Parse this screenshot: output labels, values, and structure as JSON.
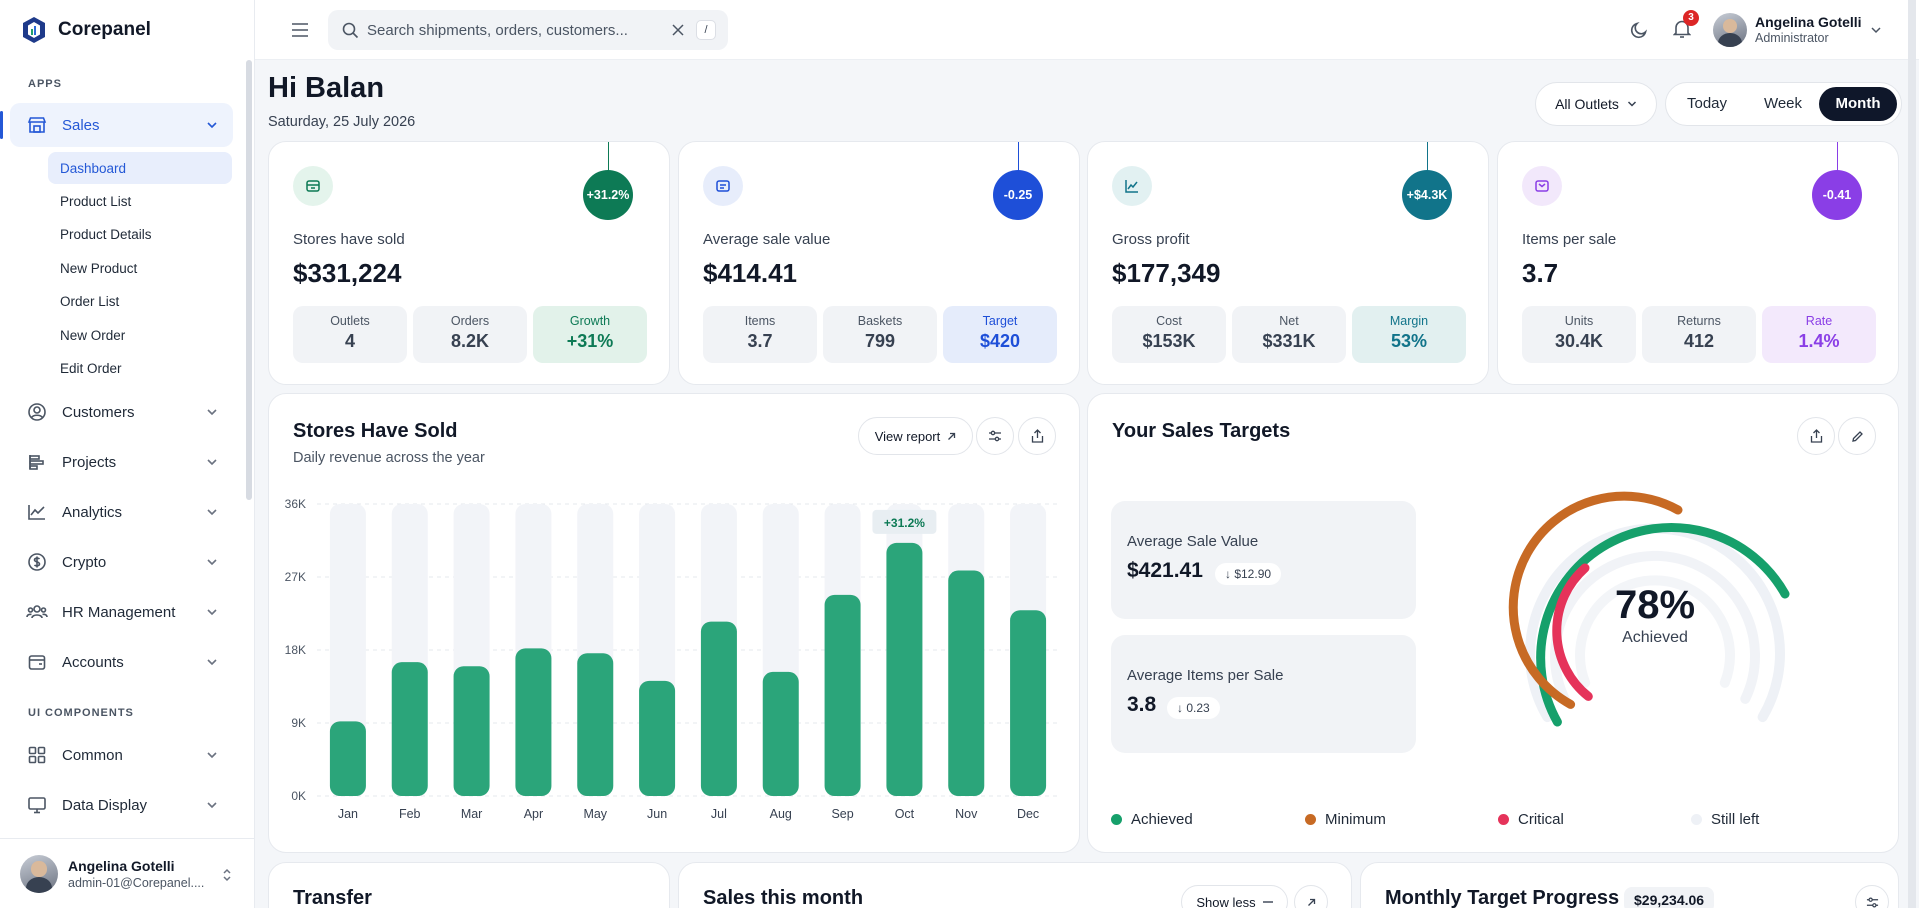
{
  "brand": "Corepanel",
  "sidebar": {
    "section_apps": "APPS",
    "section_ui": "UI COMPONENTS",
    "sales": "Sales",
    "sub": [
      "Dashboard",
      "Product List",
      "Product Details",
      "New Product",
      "Order List",
      "New Order",
      "Edit Order"
    ],
    "items": [
      "Customers",
      "Projects",
      "Analytics",
      "Crypto",
      "HR Management",
      "Accounts"
    ],
    "ui_items": [
      "Common",
      "Data Display"
    ],
    "footer_name": "Angelina Gotelli",
    "footer_email": "admin-01@Corepanel...."
  },
  "topbar": {
    "search_placeholder": "Search shipments, orders, customers...",
    "shortcut": "/",
    "notifications": "3",
    "user_name": "Angelina Gotelli",
    "user_role": "Administrator"
  },
  "header": {
    "greeting": "Hi Balan",
    "date": "Saturday, 25 July 2026",
    "outlet_select": "All Outlets",
    "ranges": [
      "Today",
      "Week",
      "Month"
    ],
    "active_range": "Month"
  },
  "stats": [
    {
      "label": "Stores have sold",
      "value": "$331,224",
      "bubble": "+31.2%",
      "color": "#0d7a55",
      "minis": [
        {
          "l": "Outlets",
          "v": "4"
        },
        {
          "l": "Orders",
          "v": "8.2K"
        },
        {
          "l": "Growth",
          "v": "+31%"
        }
      ]
    },
    {
      "label": "Average sale value",
      "value": "$414.41",
      "bubble": "-0.25",
      "color": "#1e4fd8",
      "minis": [
        {
          "l": "Items",
          "v": "3.7"
        },
        {
          "l": "Baskets",
          "v": "799"
        },
        {
          "l": "Target",
          "v": "$420"
        }
      ]
    },
    {
      "label": "Gross profit",
      "value": "$177,349",
      "bubble": "+$4.3K",
      "color": "#11748a",
      "minis": [
        {
          "l": "Cost",
          "v": "$153K"
        },
        {
          "l": "Net",
          "v": "$331K"
        },
        {
          "l": "Margin",
          "v": "53%"
        }
      ]
    },
    {
      "label": "Items per sale",
      "value": "3.7",
      "bubble": "-0.41",
      "color": "#8a3ee6",
      "minis": [
        {
          "l": "Units",
          "v": "30.4K"
        },
        {
          "l": "Returns",
          "v": "412"
        },
        {
          "l": "Rate",
          "v": "1.4%"
        }
      ]
    }
  ],
  "stores_chart": {
    "title": "Stores Have Sold",
    "subtitle": "Daily revenue across the year",
    "view_report": "View report"
  },
  "chart_data": {
    "type": "bar",
    "categories": [
      "Jan",
      "Feb",
      "Mar",
      "Apr",
      "May",
      "Jun",
      "Jul",
      "Aug",
      "Sep",
      "Oct",
      "Nov",
      "Dec"
    ],
    "values": [
      9200,
      16500,
      16000,
      18200,
      17600,
      14200,
      21500,
      15300,
      24800,
      31200,
      27800,
      22900
    ],
    "yticks": [
      "0K",
      "9K",
      "18K",
      "27K",
      "36K"
    ],
    "ylim": [
      0,
      36000
    ],
    "annotation": "+31.2%",
    "annotation_index": 9,
    "bar_color": "#2ba57a",
    "track_color": "#f2f4f8"
  },
  "targets": {
    "title": "Your Sales Targets",
    "box1_title": "Average Sale Value",
    "box1_value": "$421.41",
    "box1_change": "↓ $12.90",
    "box2_title": "Average Items per Sale",
    "box2_value": "3.8",
    "box2_change": "↓ 0.23",
    "percent": "78%",
    "achieved_label": "Achieved",
    "legend": [
      {
        "label": "Achieved",
        "color": "#16a06b"
      },
      {
        "label": "Minimum",
        "color": "#c76a24"
      },
      {
        "label": "Critical",
        "color": "#e5335a"
      },
      {
        "label": "Still left",
        "color": "#eef1f6"
      }
    ]
  },
  "bottom": {
    "transfer": "Transfer",
    "sales_month": "Sales this month",
    "show_less": "Show less",
    "monthly_target": "Monthly Target Progress",
    "monthly_amount": "$29,234.06"
  }
}
